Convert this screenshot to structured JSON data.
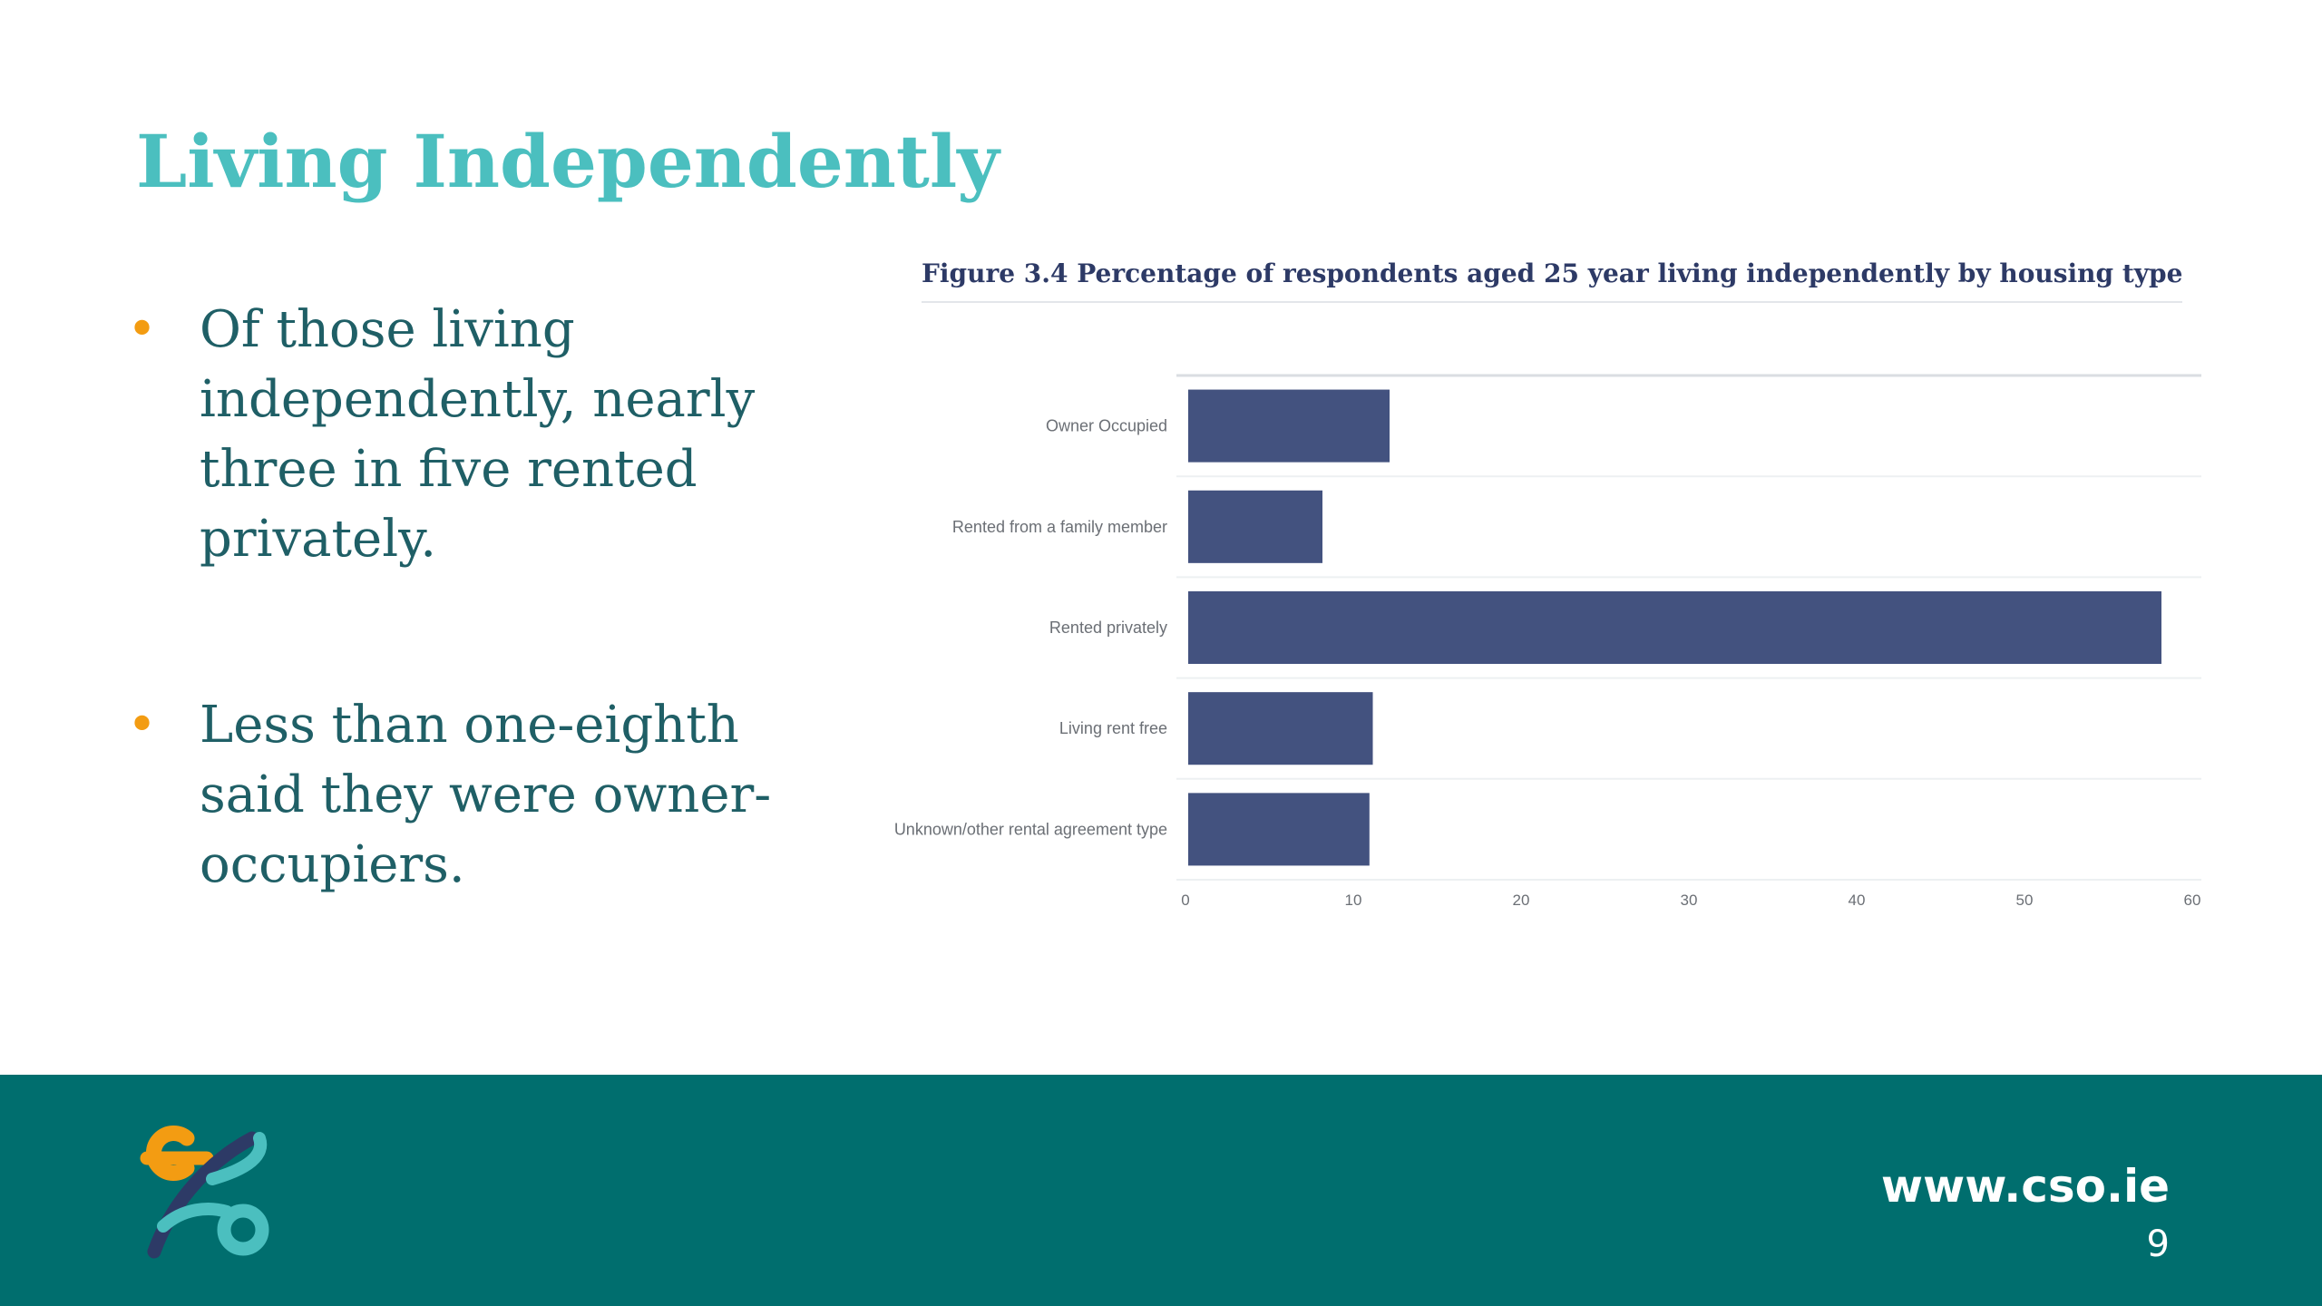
{
  "slide": {
    "title": "Living Independently",
    "bullets": [
      "Of those living independently, nearly three in five rented privately.",
      "Less than one-eighth said they were owner-occupiers."
    ],
    "bullet_color": "#f39c12"
  },
  "chart_data": {
    "type": "bar",
    "orientation": "horizontal",
    "title": "Figure 3.4 Percentage of respondents aged 25 year living independently by housing type",
    "categories": [
      "Owner Occupied",
      "Rented from a family member",
      "Rented privately",
      "Living rent free",
      "Unknown/other rental agreement type"
    ],
    "values": [
      12,
      8,
      58,
      11,
      10.8
    ],
    "xlim": [
      0,
      60
    ],
    "xticks": [
      0,
      10,
      20,
      30,
      40,
      50,
      60
    ],
    "xlabel": "",
    "ylabel": "",
    "grid": true,
    "bar_color": "#43527f"
  },
  "footer": {
    "url": "www.cso.ie",
    "page_number": "9",
    "background_color": "#006e6e",
    "logo_icon": "cso-logo-icon"
  }
}
